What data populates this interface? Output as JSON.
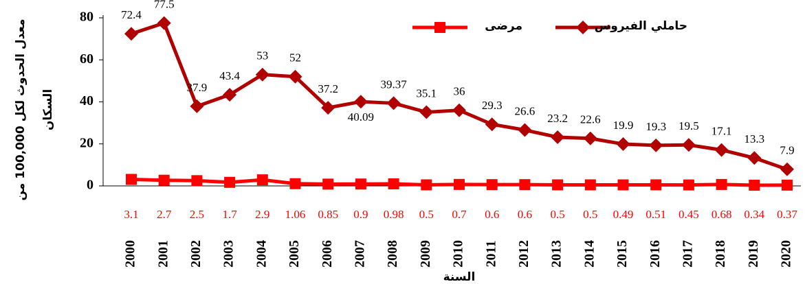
{
  "chart_data": {
    "type": "line",
    "y_label": [
      "معدل الحدوث لكل 100,000 من",
      "السكان"
    ],
    "x_label": "السنة",
    "categories": [
      "2000",
      "2001",
      "2002",
      "2003",
      "2004",
      "2005",
      "2006",
      "2007",
      "2008",
      "2009",
      "2010",
      "2011",
      "2012",
      "2013",
      "2014",
      "2015",
      "2016",
      "2017",
      "2018",
      "2019",
      "2020"
    ],
    "series": [
      {
        "name": "حاملي الفيروس",
        "color": "#b00000",
        "marker": "diamond",
        "values": [
          72.4,
          77.5,
          37.9,
          43.4,
          53,
          52,
          37.2,
          40.09,
          39.37,
          35.1,
          36,
          29.3,
          26.6,
          23.2,
          22.6,
          19.9,
          19.3,
          19.5,
          17.1,
          13.3,
          7.9
        ]
      },
      {
        "name": "مرضى",
        "color": "#ff0000",
        "marker": "square",
        "values": [
          3.1,
          2.7,
          2.5,
          1.7,
          2.9,
          1.06,
          0.85,
          0.9,
          0.98,
          0.5,
          0.7,
          0.6,
          0.6,
          0.5,
          0.5,
          0.49,
          0.51,
          0.45,
          0.68,
          0.34,
          0.37
        ]
      }
    ],
    "ylim": [
      0,
      80
    ],
    "yticks": [
      0,
      20,
      40,
      60,
      80
    ],
    "grid": false
  }
}
